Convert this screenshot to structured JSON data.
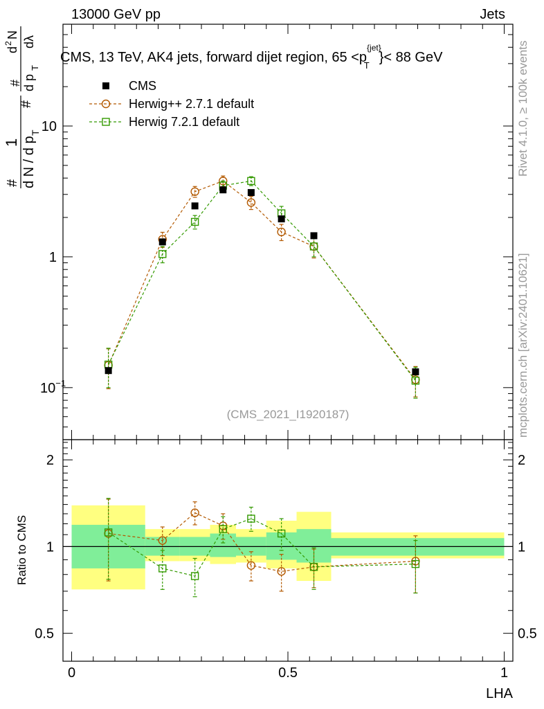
{
  "header": {
    "left": "13000 GeV pp",
    "right": "Jets"
  },
  "side": {
    "rivet": "Rivet 4.1.0, ≥ 100k events",
    "mcplots": "mcplots.cern.ch [arXiv:2401.10621]"
  },
  "chart_data": {
    "type": "scatter",
    "title": "CMS, 13 TeV, AK4 jets, forward dijet region, 65 <p_T^{jet}< 88 GeV",
    "title_parts": {
      "a": "CMS, 13 TeV, AK4 jets, forward dijet region, 65 <p",
      "sup": "{jet}",
      "sub": "T",
      "b": "}< 88 GeV"
    },
    "analysis_label": "(CMS_2021_I1920187)",
    "xlabel": "LHA",
    "ylabel_main": "#frac{1}{d N / d p_T #} #frac{d^2N}{d p_T dλ}",
    "ylabel_ratio": "Ratio to CMS",
    "xlim": [
      -0.02,
      1.02
    ],
    "ylim_main": [
      0.04,
      60
    ],
    "ylim_ratio": [
      0.4,
      2.35
    ],
    "yscale_main": "log",
    "yscale_ratio": "log",
    "x_ticks": [
      {
        "value": 0,
        "label": "0"
      },
      {
        "value": 0.5,
        "label": "0.5"
      },
      {
        "value": 1,
        "label": "1"
      }
    ],
    "y_ticks_main": [
      {
        "value": 0.1,
        "label": "10",
        "sup": "−1"
      },
      {
        "value": 1,
        "label": "1"
      },
      {
        "value": 10,
        "label": "10"
      }
    ],
    "y_ticks_ratio": [
      {
        "value": 0.5,
        "label": "0.5"
      },
      {
        "value": 1,
        "label": "1"
      },
      {
        "value": 2,
        "label": "2"
      }
    ],
    "legend_position": "top-left",
    "bin_edges": [
      0,
      0.17,
      0.25,
      0.32,
      0.38,
      0.45,
      0.52,
      0.6,
      1.0
    ],
    "series": [
      {
        "name": "CMS",
        "style": "data",
        "color": "#000000",
        "x": [
          0.085,
          0.21,
          0.285,
          0.35,
          0.415,
          0.485,
          0.56,
          0.795
        ],
        "y": [
          0.135,
          1.3,
          2.45,
          3.25,
          3.1,
          1.95,
          1.45,
          0.132
        ]
      },
      {
        "name": "Herwig++ 2.7.1 default",
        "style": "circle",
        "color": "#b35900",
        "x": [
          0.085,
          0.21,
          0.285,
          0.35,
          0.415,
          0.485,
          0.56,
          0.795
        ],
        "y": [
          0.148,
          1.36,
          3.15,
          3.8,
          2.6,
          1.55,
          1.2,
          0.115
        ],
        "yerr": [
          0.05,
          0.18,
          0.3,
          0.35,
          0.3,
          0.22,
          0.22,
          0.03
        ]
      },
      {
        "name": "Herwig 7.2.1 default",
        "style": "square",
        "color": "#339900",
        "x": [
          0.085,
          0.21,
          0.285,
          0.35,
          0.415,
          0.485,
          0.56,
          0.795
        ],
        "y": [
          0.15,
          1.05,
          1.85,
          3.5,
          3.8,
          2.15,
          1.2,
          0.113
        ],
        "yerr": [
          0.05,
          0.15,
          0.22,
          0.3,
          0.3,
          0.28,
          0.2,
          0.03
        ]
      }
    ],
    "ratio": {
      "band_inner": [
        [
          0.84,
          1.19
        ],
        [
          0.93,
          1.08
        ],
        [
          0.93,
          1.08
        ],
        [
          0.92,
          1.11
        ],
        [
          0.93,
          1.08
        ],
        [
          0.9,
          1.12
        ],
        [
          0.88,
          1.15
        ],
        [
          0.93,
          1.07
        ]
      ],
      "band_outer": [
        [
          0.71,
          1.39
        ],
        [
          0.89,
          1.15
        ],
        [
          0.89,
          1.15
        ],
        [
          0.87,
          1.19
        ],
        [
          0.88,
          1.15
        ],
        [
          0.84,
          1.23
        ],
        [
          0.76,
          1.32
        ],
        [
          0.91,
          1.12
        ]
      ],
      "series": [
        {
          "name": "Herwig++ 2.7.1 default",
          "x": [
            0.085,
            0.21,
            0.285,
            0.35,
            0.415,
            0.485,
            0.56,
            0.795
          ],
          "y": [
            1.11,
            1.05,
            1.31,
            1.18,
            0.86,
            0.82,
            0.85,
            0.89
          ],
          "yerr": [
            0.35,
            0.12,
            0.12,
            0.12,
            0.1,
            0.12,
            0.13,
            0.2
          ]
        },
        {
          "name": "Herwig 7.2.1 default",
          "x": [
            0.085,
            0.21,
            0.285,
            0.35,
            0.415,
            0.485,
            0.56,
            0.795
          ],
          "y": [
            1.12,
            0.84,
            0.79,
            1.15,
            1.25,
            1.11,
            0.85,
            0.87
          ],
          "yerr": [
            0.35,
            0.13,
            0.12,
            0.12,
            0.12,
            0.14,
            0.14,
            0.18
          ]
        }
      ]
    }
  }
}
